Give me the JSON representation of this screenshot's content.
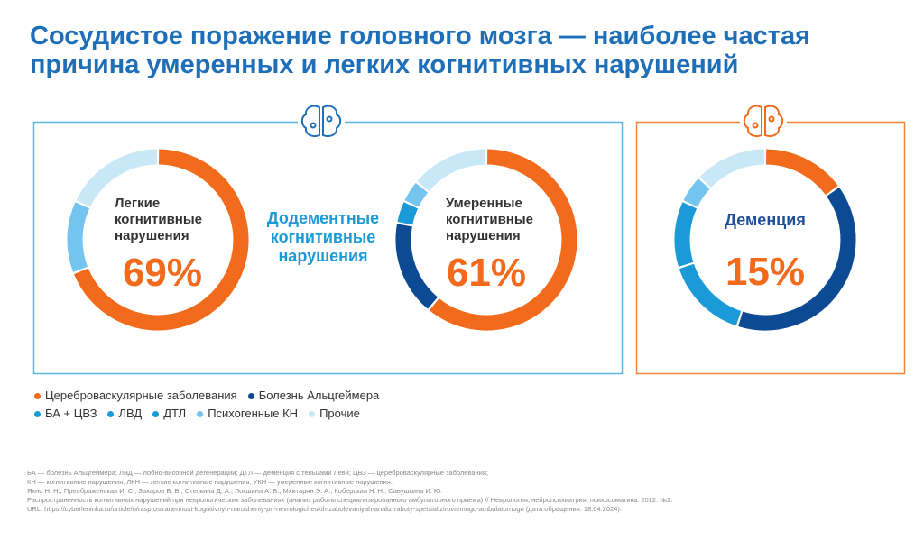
{
  "title": {
    "line1": "Сосудистое поражение головного мозга — наиболее частая",
    "line2": "причина умеренных и легких когнитивных нарушений"
  },
  "colors": {
    "title": "#1e6fb8",
    "orange": "#f26a1b",
    "dark_blue": "#0d4a94",
    "mid_blue": "#1a9ad6",
    "light_blue": "#73c4ef",
    "pale_blue": "#c8e8f8",
    "box_blue": "#5fb6e4",
    "box_orange": "#f0833a"
  },
  "center_label": [
    "Додементные",
    "когнитивные",
    "нарушения"
  ],
  "chart_data": [
    {
      "type": "pie",
      "variant": "donut",
      "title_lines": [
        "Легкие",
        "когнитивные",
        "нарушения"
      ],
      "value_label": "69%",
      "slices": [
        {
          "name": "Цереброваскулярные заболевания",
          "value": 69,
          "color": "#f26a1b"
        },
        {
          "name": "Психогенные КН",
          "value": 13,
          "color": "#73c4ef"
        },
        {
          "name": "Прочие",
          "value": 18,
          "color": "#c8e8f8"
        }
      ]
    },
    {
      "type": "pie",
      "variant": "donut",
      "title_lines": [
        "Умеренные",
        "когнитивные",
        "нарушения"
      ],
      "value_label": "61%",
      "slices": [
        {
          "name": "Цереброваскулярные заболевания",
          "value": 61,
          "color": "#f26a1b"
        },
        {
          "name": "Болезнь Альцгеймера",
          "value": 17,
          "color": "#0d4a94"
        },
        {
          "name": "БА + ЦВЗ",
          "value": 4,
          "color": "#1a9ad6"
        },
        {
          "name": "Психогенные КН",
          "value": 4,
          "color": "#73c4ef"
        },
        {
          "name": "Прочие",
          "value": 14,
          "color": "#c8e8f8"
        }
      ]
    },
    {
      "type": "pie",
      "variant": "donut",
      "title_lines": [
        "Деменция"
      ],
      "value_label": "15%",
      "slices": [
        {
          "name": "Цереброваскулярные заболевания",
          "value": 15,
          "color": "#f26a1b"
        },
        {
          "name": "Болезнь Альцгеймера",
          "value": 40,
          "color": "#0d4a94"
        },
        {
          "name": "БА + ЦВЗ",
          "value": 15,
          "color": "#1a9ad6"
        },
        {
          "name": "ЛВД",
          "value": 12,
          "color": "#1a9ad6"
        },
        {
          "name": "ДТЛ",
          "value": 5,
          "color": "#73c4ef"
        },
        {
          "name": "Прочие",
          "value": 13,
          "color": "#c8e8f8"
        }
      ]
    }
  ],
  "legend": {
    "row1": [
      {
        "label": "Цереброваскулярные заболевания",
        "color": "#f26a1b"
      },
      {
        "label": "Болезнь Альцгеймера",
        "color": "#0d4a94"
      }
    ],
    "row2": [
      {
        "label": "БА + ЦВЗ",
        "color": "#1a9ad6"
      },
      {
        "label": "ЛВД",
        "color": "#1a9ad6"
      },
      {
        "label": "ДТЛ",
        "color": "#1a9ad6"
      },
      {
        "label": "Психогенные КН",
        "color": "#73c4ef"
      },
      {
        "label": "Прочие",
        "color": "#c8e8f8"
      }
    ]
  },
  "footer": [
    "БА — болезнь Альцгеймера; ЛВД — лобно-височной дегенерации; ДТЛ — деменция с тельцами Леви; ЦВЗ — цереброваскулярные заболевания;",
    "КН — когнитивные нарушения; ЛКН — легкие когнитивные нарушения; УКН — умеренные когнитивные нарушения.",
    "Яхно Н. Н., Преображенская И. С., Захаров В. В., Степкина Д. А., Локшина А. Б., Мхитарян Э. А., Коберская Н. Н., Савушкина И. Ю.",
    "Распространенность когнитивных нарушений при неврологических заболеваниях (анализ работы специализированного амбулаторного приема) // Неврология, нейропсихиатрия, психосоматика. 2012. №2.",
    "URL: https://cyberleninka.ru/article/n/rasprostranennost-kognitivnyh-narusheniy-pri-nevrologicheskih-zabolevaniyah-analiz-raboty-spetsializirovannogo-ambulatornogo (дата обращения: 18.04.2024)."
  ]
}
